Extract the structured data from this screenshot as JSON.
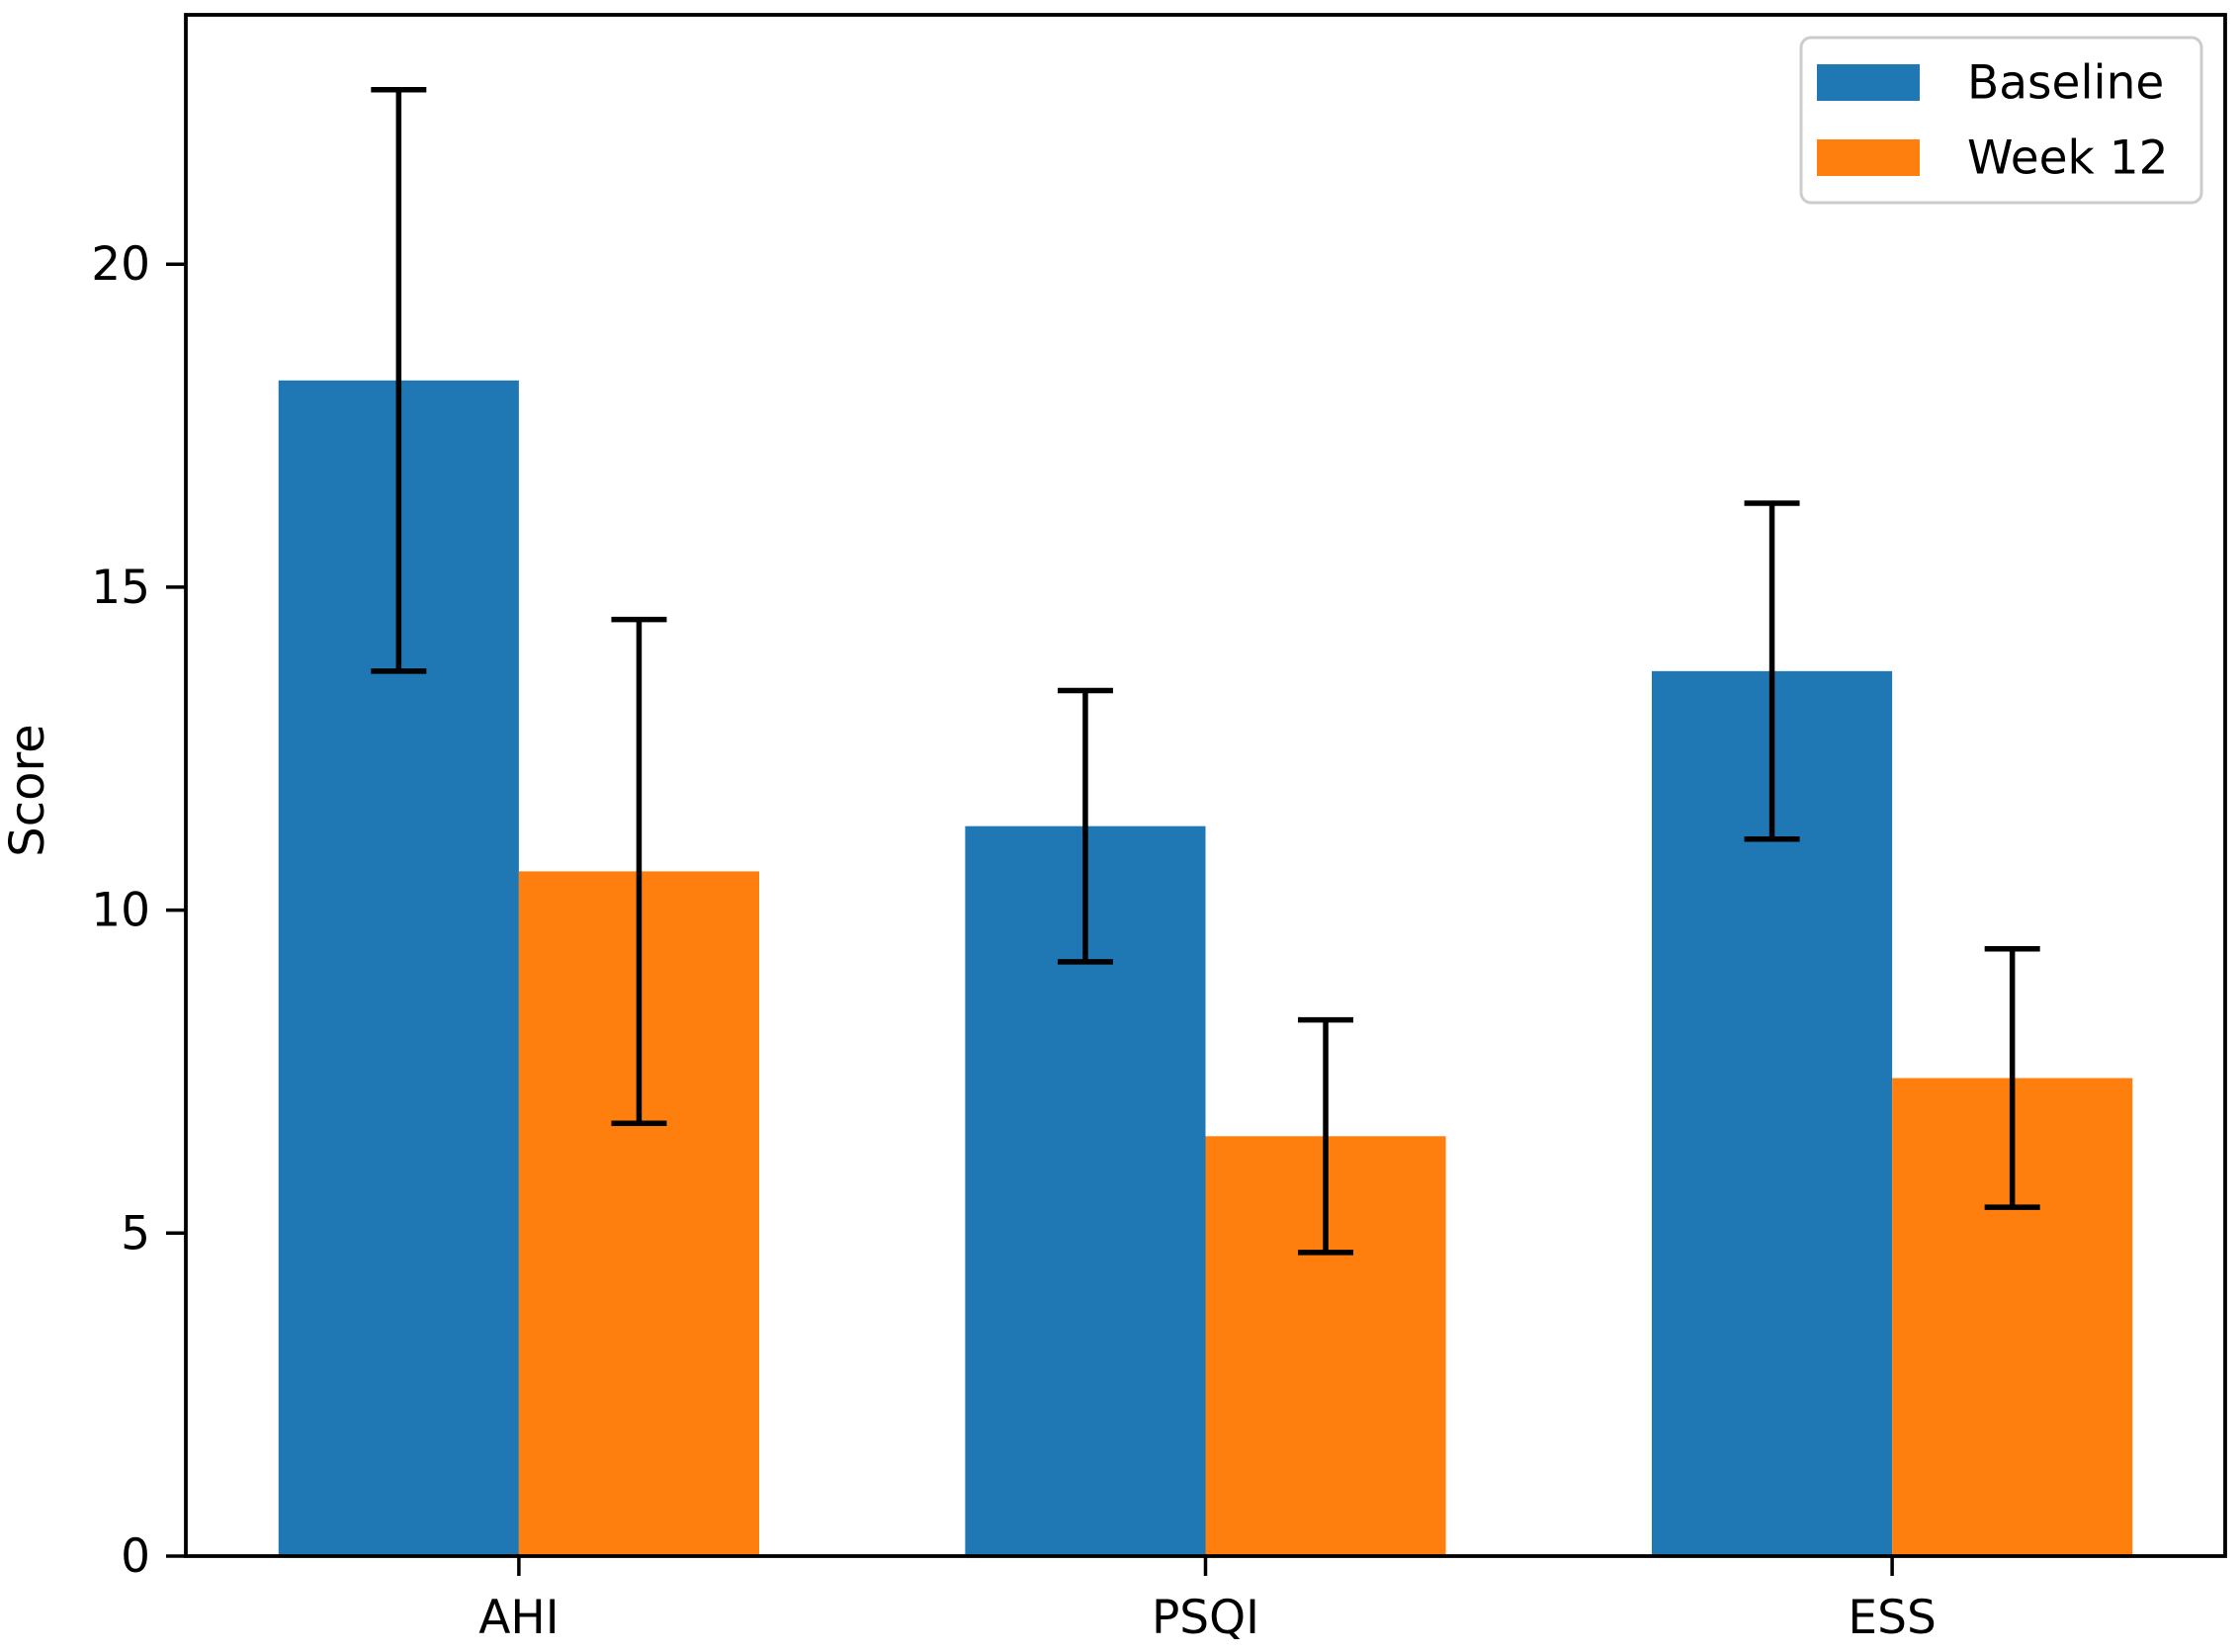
{
  "figure": {
    "background": "#ffffff",
    "frame_color": "#000000"
  },
  "chart_data": {
    "type": "bar",
    "title": "",
    "categories": [
      "AHI",
      "PSQI",
      "ESS"
    ],
    "series": [
      {
        "name": "Baseline",
        "color": "#1f77b4",
        "values": [
          18.2,
          11.3,
          13.7
        ],
        "errors": [
          4.5,
          2.1,
          2.6
        ]
      },
      {
        "name": "Week 12",
        "color": "#ff7f0e",
        "values": [
          10.6,
          6.5,
          7.4
        ],
        "errors": [
          3.9,
          1.8,
          2.0
        ]
      }
    ],
    "xlabel": "",
    "ylabel": "Score",
    "ylim": [
      0,
      23.86
    ],
    "ytick_values": [
      0,
      5,
      10,
      15,
      20
    ],
    "ytick_labels": [
      "0",
      "5",
      "10",
      "15",
      "20"
    ],
    "bar_width": 0.35,
    "error_bar_color": "#000000",
    "grid": false,
    "legend": {
      "location": "upper right"
    }
  }
}
